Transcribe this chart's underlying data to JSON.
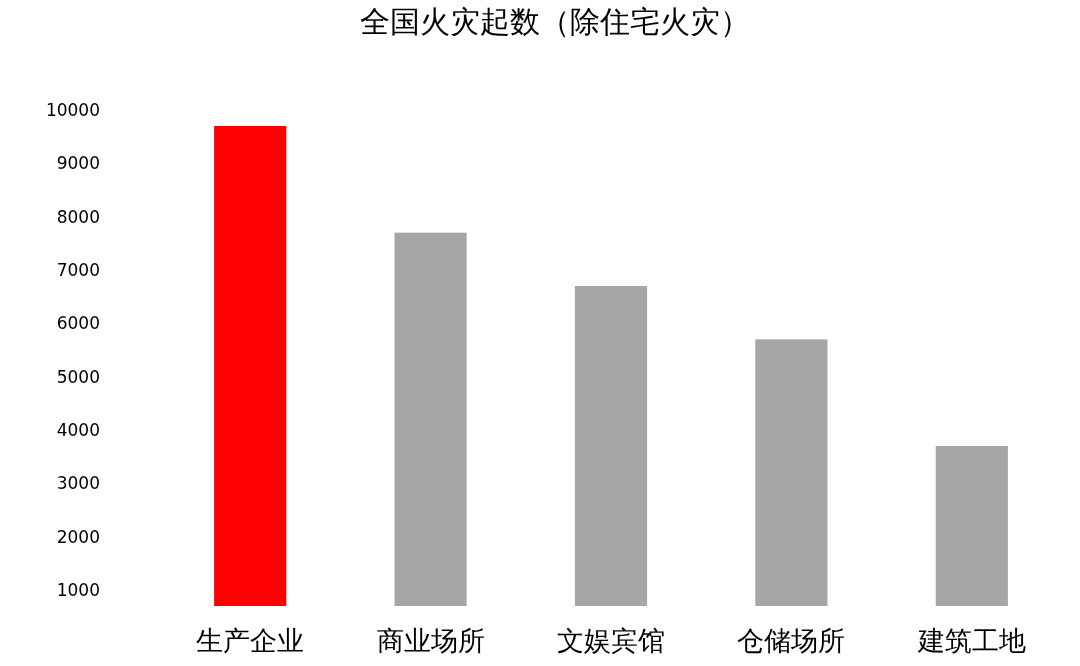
{
  "chart_data": {
    "type": "bar",
    "title": "全国火灾起数（除住宅火灾）",
    "categories": [
      "生产企业",
      "商业场所",
      "文娱宾馆",
      "仓储场所",
      "建筑工地"
    ],
    "values": [
      9700,
      7700,
      6700,
      5700,
      3700
    ],
    "colors": [
      "#ff0000",
      "#a6a6a6",
      "#a6a6a6",
      "#a6a6a6",
      "#a6a6a6"
    ],
    "ylim": [
      700,
      10000
    ],
    "yticks": [
      1000,
      2000,
      3000,
      4000,
      5000,
      6000,
      7000,
      8000,
      9000,
      10000
    ]
  }
}
